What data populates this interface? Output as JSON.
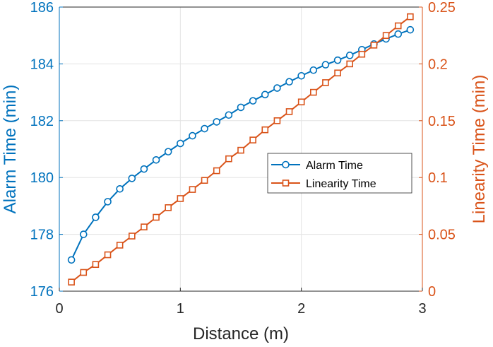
{
  "chart_data": {
    "type": "line",
    "xlabel": "Distance (m)",
    "ylabel_left": "Alarm Time (min)",
    "ylabel_right": "Linearity Time (min)",
    "xlim": [
      0,
      3
    ],
    "ylim_left": [
      176,
      186
    ],
    "ylim_right": [
      0,
      0.25
    ],
    "x_ticks": [
      "0",
      "1",
      "2",
      "3"
    ],
    "y_left_ticks": [
      "176",
      "178",
      "180",
      "182",
      "184",
      "186"
    ],
    "y_right_ticks": [
      "0",
      "0.05",
      "0.1",
      "0.15",
      "0.2",
      "0.25"
    ],
    "grid": true,
    "legend_position": "center-right",
    "colors": {
      "left_axis": "#0072BD",
      "right_axis": "#D95319"
    },
    "series": [
      {
        "name": "Alarm Time",
        "axis": "left",
        "marker": "circle",
        "color": "#0072BD",
        "x": [
          0.1,
          0.2,
          0.3,
          0.4,
          0.5,
          0.6,
          0.7,
          0.8,
          0.9,
          1.0,
          1.1,
          1.2,
          1.3,
          1.4,
          1.5,
          1.6,
          1.7,
          1.8,
          1.9,
          2.0,
          2.1,
          2.2,
          2.3,
          2.4,
          2.5,
          2.6,
          2.7,
          2.8,
          2.9
        ],
        "values": [
          177.1,
          178.0,
          178.6,
          179.15,
          179.6,
          179.97,
          180.3,
          180.62,
          180.91,
          181.2,
          181.47,
          181.72,
          181.96,
          182.2,
          182.47,
          182.7,
          182.92,
          183.15,
          183.37,
          183.58,
          183.78,
          183.97,
          184.13,
          184.3,
          184.5,
          184.7,
          184.88,
          185.05,
          185.2
        ]
      },
      {
        "name": "Linearity Time",
        "axis": "right",
        "marker": "square",
        "color": "#D95319",
        "x": [
          0.1,
          0.2,
          0.3,
          0.4,
          0.5,
          0.6,
          0.7,
          0.8,
          0.9,
          1.0,
          1.1,
          1.2,
          1.3,
          1.4,
          1.5,
          1.6,
          1.7,
          1.8,
          1.9,
          2.0,
          2.1,
          2.2,
          2.3,
          2.4,
          2.5,
          2.6,
          2.7,
          2.8,
          2.9
        ],
        "values": [
          0.008,
          0.0165,
          0.0235,
          0.032,
          0.0405,
          0.0485,
          0.0565,
          0.065,
          0.0735,
          0.0815,
          0.0895,
          0.0975,
          0.106,
          0.1165,
          0.124,
          0.133,
          0.142,
          0.15,
          0.158,
          0.1665,
          0.175,
          0.1835,
          0.192,
          0.2,
          0.2085,
          0.2165,
          0.225,
          0.2335,
          0.2415
        ]
      }
    ]
  }
}
